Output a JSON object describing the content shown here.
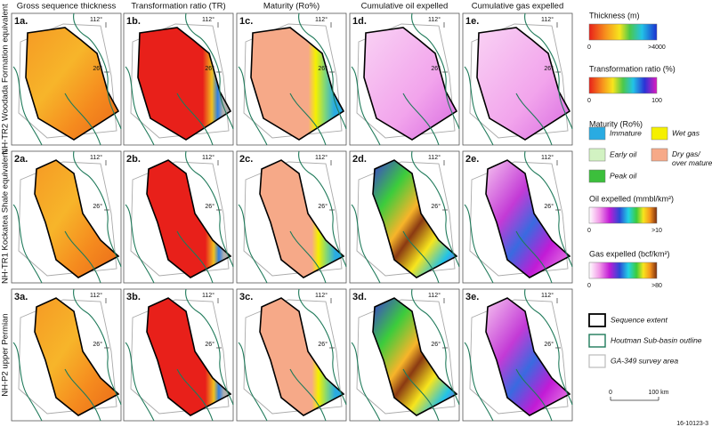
{
  "columns": [
    "Gross sequence thickness",
    "Transformation ratio (TR)",
    "Maturity (Ro%)",
    "Cumulative oil expelled",
    "Cumulative gas expelled"
  ],
  "rows": [
    {
      "label": "NH-TR2 Woodada Formation equivalent",
      "panels": [
        "1a.",
        "1b.",
        "1c.",
        "1d.",
        "1e."
      ]
    },
    {
      "label": "NH-TR1 Kockatea Shale equivalent",
      "panels": [
        "2a.",
        "2b.",
        "2c.",
        "2d.",
        "2e."
      ]
    },
    {
      "label": "NH-P2 upper Permian",
      "panels": [
        "3a.",
        "3b.",
        "3c.",
        "3d.",
        "3e."
      ]
    }
  ],
  "map_labels": {
    "longitude": "112°",
    "latitude": "26°"
  },
  "legend": {
    "thickness": {
      "title": "Thickness (m)",
      "min": "0",
      "max": ">4000"
    },
    "transformation_ratio": {
      "title": "Transformation ratio (%)",
      "min": "0",
      "max": "100"
    },
    "maturity": {
      "title": "Maturity (Ro%)",
      "items": [
        "Immature",
        "Wet gas",
        "Early oil",
        "Dry gas/ over mature",
        "Peak oil"
      ]
    },
    "oil": {
      "title": "Oil expelled (mmbl/km²)",
      "min": "0",
      "max": ">10"
    },
    "gas": {
      "title": "Gas expelled (bcf/km²)",
      "min": "0",
      "max": ">80"
    },
    "outlines": [
      "Sequence extent",
      "Houtman Sub-basin outline",
      "GA-349 survey area"
    ],
    "scale": {
      "min": "0",
      "max": "100 km"
    }
  },
  "figure_id": "16-10123-3"
}
